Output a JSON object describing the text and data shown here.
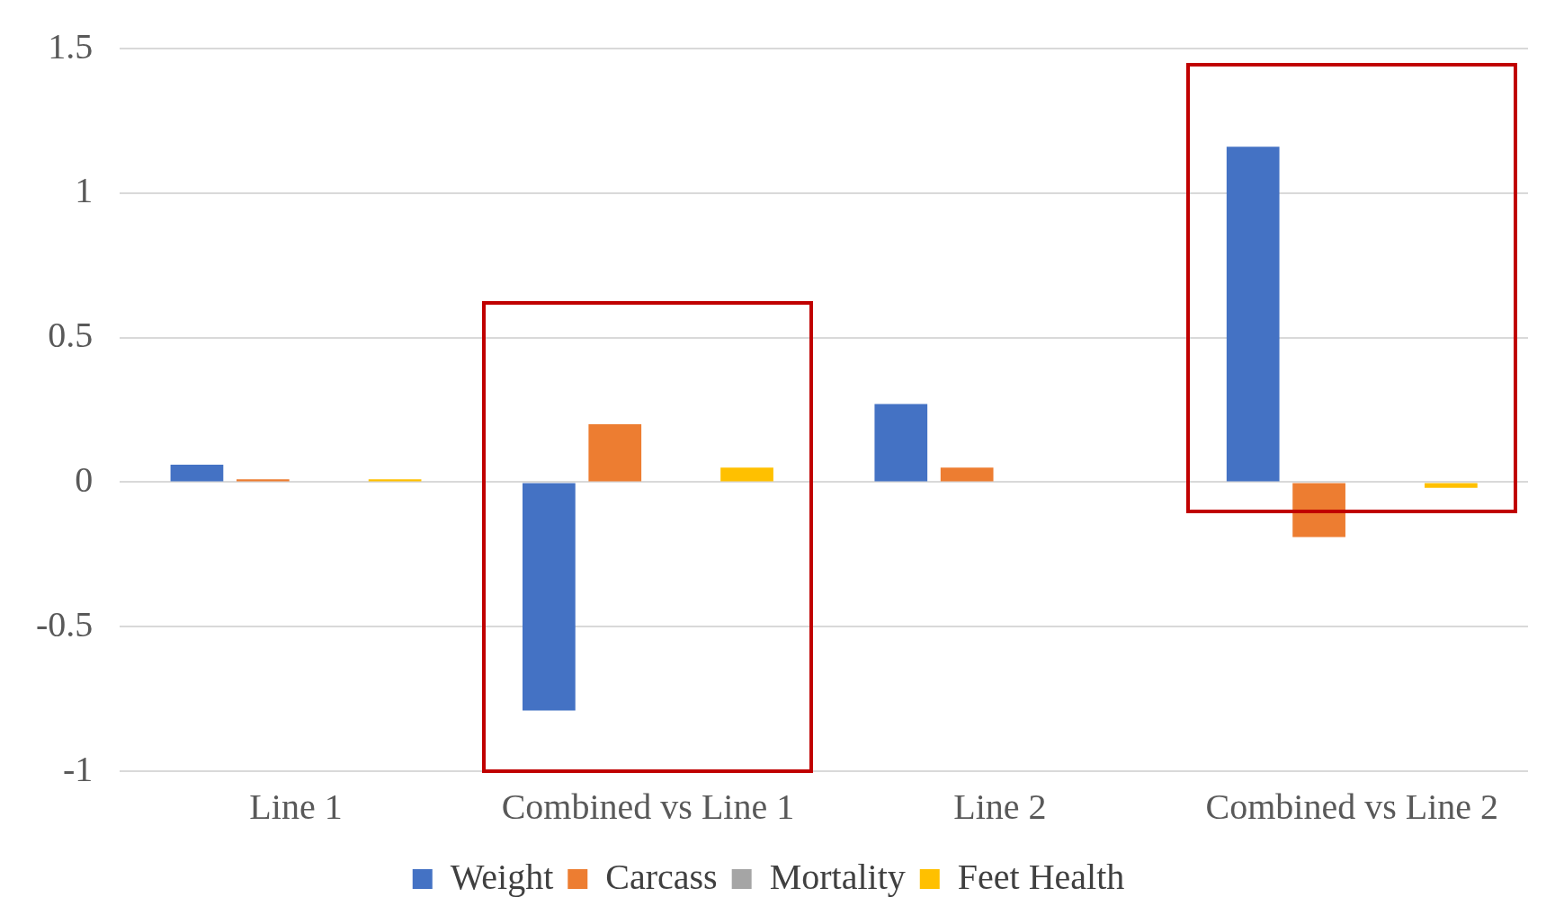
{
  "chart_data": {
    "type": "bar",
    "categories": [
      "Line 1",
      "Combined vs Line 1",
      "Line 2",
      "Combined vs Line 2"
    ],
    "series": [
      {
        "name": "Weight",
        "color": "#4472c4",
        "values": [
          0.06,
          -0.79,
          0.27,
          1.16
        ]
      },
      {
        "name": "Carcass",
        "color": "#ed7d31",
        "values": [
          0.01,
          0.2,
          0.05,
          -0.19
        ]
      },
      {
        "name": "Mortality",
        "color": "#a5a5a5",
        "values": [
          0,
          0,
          0,
          0
        ]
      },
      {
        "name": "Feet Health",
        "color": "#ffc000",
        "values": [
          0.01,
          0.05,
          0,
          -0.02
        ]
      }
    ],
    "ylim": [
      -1,
      1.5
    ],
    "yticks": [
      -1,
      -0.5,
      0,
      0.5,
      1,
      1.5
    ],
    "grid": "y",
    "legend": "bottom"
  }
}
